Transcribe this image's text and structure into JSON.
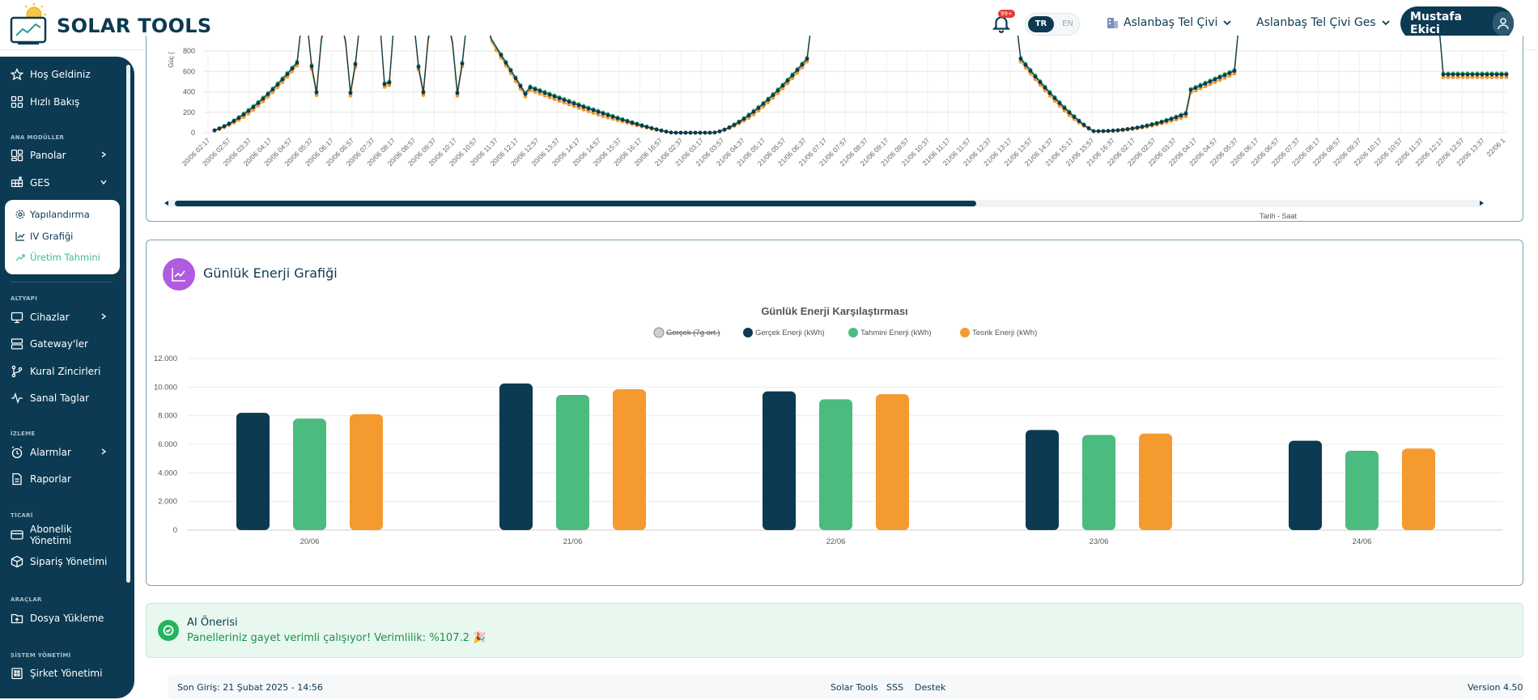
{
  "header": {
    "brand": "SOLAR TOOLS",
    "notification_count": "99+",
    "lang_tr": "TR",
    "lang_en": "EN",
    "org_select": "Aslanbaş Tel Çivi",
    "plant_select": "Aslanbaş Tel Çivi Ges",
    "user_name": "Mustafa Ekici"
  },
  "sidebar": {
    "welcome": "Hoş Geldiniz",
    "quick_view": "Hızlı Bakış",
    "section_modules": "ANA MODÜLLER",
    "panels": "Panolar",
    "ges": "GES",
    "ges_sub": [
      "Yapılandırma",
      "IV Grafiği",
      "Üretim Tahmini"
    ],
    "section_infra": "ALTYAPI",
    "devices": "Cihazlar",
    "gateways": "Gateway'ler",
    "rule_chains": "Kural Zincirleri",
    "virtual_tags": "Sanal Taglar",
    "section_monitor": "İZLEME",
    "alarms": "Alarmlar",
    "reports": "Raporlar",
    "section_commerce": "TİCARİ",
    "subscriptions": "Abonelik Yönetimi",
    "orders": "Sipariş Yönetimi",
    "section_tools": "ARAÇLAR",
    "file_upload": "Dosya Yükleme",
    "section_system": "SİSTEM YÖNETİMİ",
    "company_mgmt": "Şirket Yönetimi"
  },
  "power_chart": {
    "ylabel": "Güç (",
    "xlabel": "Tarih - Saat",
    "y_ticks": [
      "800",
      "600",
      "400",
      "200",
      "0"
    ],
    "x_ticks": [
      "20/06 02:17",
      "20/06 02:57",
      "20/06 03:37",
      "20/06 04:17",
      "20/06 04:57",
      "20/06 05:37",
      "20/06 06:17",
      "20/06 06:57",
      "20/06 07:37",
      "20/06 08:17",
      "20/06 08:57",
      "20/06 09:37",
      "20/06 10:17",
      "20/06 10:57",
      "20/06 11:37",
      "20/06 12:17",
      "20/06 12:57",
      "20/06 13:37",
      "20/06 14:17",
      "20/06 14:57",
      "20/06 15:37",
      "20/06 16:17",
      "20/06 16:57",
      "21/06 02:37",
      "21/06 03:17",
      "21/06 03:57",
      "21/06 04:37",
      "21/06 05:17",
      "21/06 05:57",
      "21/06 06:37",
      "21/06 07:17",
      "21/06 07:57",
      "21/06 08:37",
      "21/06 09:17",
      "21/06 09:57",
      "21/06 10:37",
      "21/06 11:17",
      "21/06 11:57",
      "21/06 12:37",
      "21/06 13:17",
      "21/06 13:57",
      "21/06 14:37",
      "21/06 15:17",
      "21/06 15:57",
      "21/06 16:37",
      "22/06 02:17",
      "22/06 02:57",
      "22/06 03:37",
      "22/06 04:17",
      "22/06 04:57",
      "22/06 05:37",
      "22/06 06:17",
      "22/06 06:57",
      "22/06 07:37",
      "22/06 08:17",
      "22/06 08:57",
      "22/06 09:37",
      "22/06 10:17",
      "22/06 10:57",
      "22/06 11:37",
      "22/06 12:17",
      "22/06 12:57",
      "22/06 13:37",
      "22/06 1"
    ]
  },
  "energy_card": {
    "title": "Günlük Enerji Grafiği"
  },
  "chart_data": {
    "type": "bar",
    "title": "Günlük Enerji Karşılaştırması",
    "categories": [
      "20/06",
      "21/06",
      "22/06",
      "23/06",
      "24/06"
    ],
    "y_ticks": [
      "12.000",
      "10.000",
      "8.000",
      "6.000",
      "4.000",
      "2.000",
      "0"
    ],
    "ylim": [
      0,
      12000
    ],
    "grid": true,
    "legend_position": "top-center",
    "legend_hidden_entry": "Gerçek (7g ort.)",
    "series": [
      {
        "name": "Gerçek Enerji (kWh)",
        "color": "#0b3a52",
        "values": [
          8200,
          10250,
          9700,
          7000,
          6250
        ]
      },
      {
        "name": "Tahmini Enerji (kWh)",
        "color": "#4cbb7f",
        "values": [
          7800,
          9450,
          9150,
          6650,
          5550
        ]
      },
      {
        "name": "Teorik Enerji (kWh)",
        "color": "#f49a2f",
        "values": [
          8100,
          9850,
          9500,
          6750,
          5700
        ]
      }
    ]
  },
  "ai": {
    "title": "AI Önerisi",
    "text": "Panelleriniz gayet verimli çalışıyor! Verimlilik: %107.2 🎉"
  },
  "footer": {
    "last_login": "Son Giriş: 21 Şubat 2025 - 14:56",
    "links": [
      "Solar Tools",
      "SSS",
      "Destek"
    ],
    "version": "Version 4.50"
  }
}
